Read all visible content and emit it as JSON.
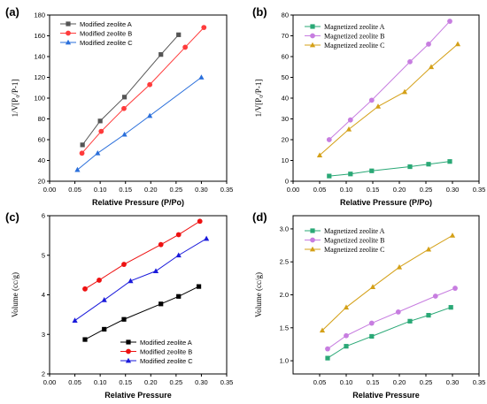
{
  "chart_data": [
    {
      "type": "line",
      "panel_label": "(a)",
      "xlabel": "Relative Pressure (P/Po)",
      "ylabel": "1/V[P₀/P-1]",
      "xlim": [
        0,
        0.35
      ],
      "ylim": [
        20,
        180
      ],
      "xticks": [
        0,
        0.05,
        0.1,
        0.15,
        0.2,
        0.25,
        0.3,
        0.35
      ],
      "xtick_labels": [
        "0.00",
        "0.05",
        "0.10",
        "0.15",
        "0.20",
        "0.25",
        "0.30",
        "0.35"
      ],
      "yticks": [
        20,
        40,
        60,
        80,
        100,
        120,
        140,
        160,
        180
      ],
      "ytick_labels": [
        "20",
        "40",
        "60",
        "80",
        "100",
        "120",
        "140",
        "160",
        "180"
      ],
      "legend_position": "top-left",
      "series": [
        {
          "name": "Modified zeolite A",
          "color": "#555555",
          "marker": "square",
          "x": [
            0.065,
            0.1,
            0.148,
            0.22,
            0.255
          ],
          "y": [
            55,
            78,
            101,
            142,
            161
          ]
        },
        {
          "name": "Modified zeolite B",
          "color": "#ff3b3b",
          "marker": "circle",
          "x": [
            0.064,
            0.102,
            0.147,
            0.198,
            0.268,
            0.305
          ],
          "y": [
            47,
            68,
            90,
            113,
            149,
            168
          ]
        },
        {
          "name": "Modified zeolite C",
          "color": "#2a6fdb",
          "marker": "triangle",
          "x": [
            0.055,
            0.095,
            0.148,
            0.198,
            0.3
          ],
          "y": [
            31,
            47,
            65,
            83,
            120
          ]
        }
      ]
    },
    {
      "type": "line",
      "panel_label": "(b)",
      "xlabel": "Relative Pressure (P/Po)",
      "ylabel": "1/V[P₀/P-1]",
      "xlim": [
        0,
        0.35
      ],
      "ylim": [
        0,
        80
      ],
      "xticks": [
        0,
        0.05,
        0.1,
        0.15,
        0.2,
        0.25,
        0.3,
        0.35
      ],
      "xtick_labels": [
        "0.00",
        "0.05",
        "0.10",
        "0.15",
        "0.20",
        "0.25",
        "0.30",
        "0.35"
      ],
      "yticks": [
        0,
        10,
        20,
        30,
        40,
        50,
        60,
        70,
        80
      ],
      "ytick_labels": [
        "0",
        "10",
        "20",
        "30",
        "40",
        "50",
        "60",
        "70",
        "80"
      ],
      "legend_position": "top-left",
      "series": [
        {
          "name": "Magnetized zeolite A",
          "color": "#2aa876",
          "marker": "square",
          "x": [
            0.068,
            0.108,
            0.148,
            0.22,
            0.255,
            0.295
          ],
          "y": [
            2.5,
            3.5,
            5,
            7,
            8.2,
            9.5
          ]
        },
        {
          "name": "Magnetized zeolite B",
          "color": "#c77de0",
          "marker": "circle",
          "x": [
            0.068,
            0.108,
            0.148,
            0.22,
            0.255,
            0.295
          ],
          "y": [
            20,
            29.5,
            39,
            57.5,
            66,
            77
          ]
        },
        {
          "name": "Magnetized zeolite C",
          "color": "#d4a017",
          "marker": "triangle",
          "x": [
            0.05,
            0.105,
            0.16,
            0.21,
            0.26,
            0.31
          ],
          "y": [
            12.5,
            25,
            36,
            43,
            55,
            66
          ]
        }
      ]
    },
    {
      "type": "line",
      "panel_label": "(c)",
      "xlabel": "Relative Pressure",
      "ylabel": "Volume (cc/g)",
      "xlim": [
        0,
        0.35
      ],
      "ylim": [
        2,
        6
      ],
      "xticks": [
        0,
        0.05,
        0.1,
        0.15,
        0.2,
        0.25,
        0.3,
        0.35
      ],
      "xtick_labels": [
        "0.00",
        "0.05",
        "0.10",
        "0.15",
        "0.20",
        "0.25",
        "0.30",
        "0.35"
      ],
      "yticks": [
        2,
        3,
        4,
        5,
        6
      ],
      "ytick_labels": [
        "2",
        "3",
        "4",
        "5",
        "6"
      ],
      "legend_position": "bottom-right",
      "series": [
        {
          "name": "Modified zeolite A",
          "color": "#000000",
          "marker": "square",
          "x": [
            0.07,
            0.108,
            0.147,
            0.22,
            0.255,
            0.295
          ],
          "y": [
            2.87,
            3.13,
            3.38,
            3.77,
            3.96,
            4.21
          ]
        },
        {
          "name": "Modified zeolite B",
          "color": "#ee1111",
          "marker": "circle",
          "x": [
            0.07,
            0.098,
            0.147,
            0.22,
            0.255,
            0.297
          ],
          "y": [
            4.15,
            4.37,
            4.77,
            5.27,
            5.52,
            5.86
          ]
        },
        {
          "name": "Modified zeolite C",
          "color": "#1a1adb",
          "marker": "triangle",
          "x": [
            0.05,
            0.108,
            0.16,
            0.21,
            0.255,
            0.31
          ],
          "y": [
            3.35,
            3.87,
            4.35,
            4.6,
            5.0,
            5.42
          ]
        }
      ]
    },
    {
      "type": "line",
      "panel_label": "(d)",
      "xlabel": "Relative Pressure",
      "ylabel": "Volume (cc/g)",
      "xlim": [
        0,
        0.35
      ],
      "ylim": [
        0.8,
        3.2
      ],
      "xticks": [
        0.05,
        0.1,
        0.15,
        0.2,
        0.25,
        0.3,
        0.35
      ],
      "xtick_labels": [
        "0.05",
        "0.10",
        "0.15",
        "0.20",
        "0.25",
        "0.30",
        "0.35"
      ],
      "yticks": [
        1.0,
        1.5,
        2.0,
        2.5,
        3.0
      ],
      "ytick_labels": [
        "1.0",
        "1.5",
        "2.0",
        "2.5",
        "3.0"
      ],
      "legend_position": "top-left",
      "series": [
        {
          "name": "Magnetized zeolite A",
          "color": "#2aa876",
          "marker": "square",
          "x": [
            0.065,
            0.1,
            0.148,
            0.22,
            0.255,
            0.297
          ],
          "y": [
            1.04,
            1.22,
            1.37,
            1.6,
            1.69,
            1.81
          ]
        },
        {
          "name": "Magnetized zeolite B",
          "color": "#c77de0",
          "marker": "circle",
          "x": [
            0.065,
            0.1,
            0.148,
            0.198,
            0.268,
            0.305
          ],
          "y": [
            1.18,
            1.38,
            1.57,
            1.74,
            1.98,
            2.1
          ]
        },
        {
          "name": "Magnetized zeolite C",
          "color": "#d4a017",
          "marker": "triangle",
          "x": [
            0.055,
            0.1,
            0.15,
            0.2,
            0.255,
            0.3
          ],
          "y": [
            1.46,
            1.81,
            2.12,
            2.42,
            2.69,
            2.9
          ]
        }
      ]
    }
  ]
}
